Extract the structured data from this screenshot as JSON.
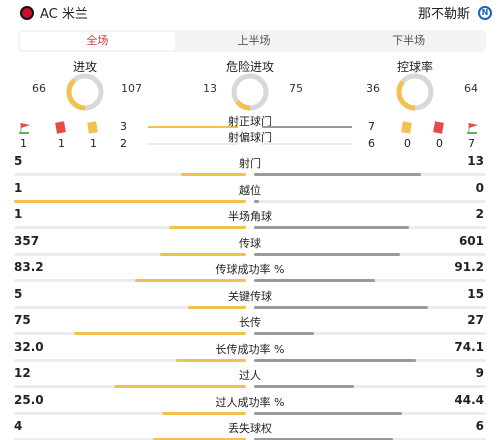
{
  "header": {
    "home_team": "AC 米兰",
    "away_team": "那不勒斯",
    "home_crest_icon": "ac-milan-crest-icon",
    "away_crest_icon": "napoli-crest-icon",
    "away_crest_letter": "N"
  },
  "tabs": [
    {
      "label": "全场",
      "active": true
    },
    {
      "label": "上半场",
      "active": false
    },
    {
      "label": "下半场",
      "active": false
    }
  ],
  "donuts": [
    {
      "label": "进攻",
      "home": "66",
      "away": "107"
    },
    {
      "label": "危险进攻",
      "home": "13",
      "away": "75"
    },
    {
      "label": "控球率",
      "home": "36",
      "away": "64"
    }
  ],
  "shots": {
    "on_target_label": "射正球门",
    "off_target_label": "射偏球门",
    "home_on_target": "3",
    "home_off_target": "2",
    "away_on_target": "7",
    "away_off_target": "6",
    "home_counts": [
      "1",
      "1",
      "1"
    ],
    "away_counts": [
      "0",
      "0",
      "7"
    ],
    "icons": [
      "corner-flag-icon",
      "red-card-icon",
      "yellow-card-icon"
    ]
  },
  "stats": [
    {
      "label": "射门",
      "home": "5",
      "away": "13",
      "home_frac": 0.28,
      "away_frac": 0.72
    },
    {
      "label": "越位",
      "home": "1",
      "away": "0",
      "home_frac": 1.0,
      "away_frac": 0.02
    },
    {
      "label": "半场角球",
      "home": "1",
      "away": "2",
      "home_frac": 0.33,
      "away_frac": 0.67
    },
    {
      "label": "传球",
      "home": "357",
      "away": "601",
      "home_frac": 0.37,
      "away_frac": 0.63
    },
    {
      "label": "传球成功率 %",
      "home": "83.2",
      "away": "91.2",
      "home_frac": 0.48,
      "away_frac": 0.52
    },
    {
      "label": "关键传球",
      "home": "5",
      "away": "15",
      "home_frac": 0.25,
      "away_frac": 0.75
    },
    {
      "label": "长传",
      "home": "75",
      "away": "27",
      "home_frac": 0.74,
      "away_frac": 0.26
    },
    {
      "label": "长传成功率 %",
      "home": "32.0",
      "away": "74.1",
      "home_frac": 0.3,
      "away_frac": 0.7
    },
    {
      "label": "过人",
      "home": "12",
      "away": "9",
      "home_frac": 0.57,
      "away_frac": 0.43
    },
    {
      "label": "过人成功率 %",
      "home": "25.0",
      "away": "44.4",
      "home_frac": 0.36,
      "away_frac": 0.64
    },
    {
      "label": "丢失球权",
      "home": "4",
      "away": "6",
      "home_frac": 0.4,
      "away_frac": 0.6
    }
  ],
  "colors": {
    "home": "#f2c14e",
    "away": "#9a9a9a",
    "accent": "#d23b3b"
  }
}
